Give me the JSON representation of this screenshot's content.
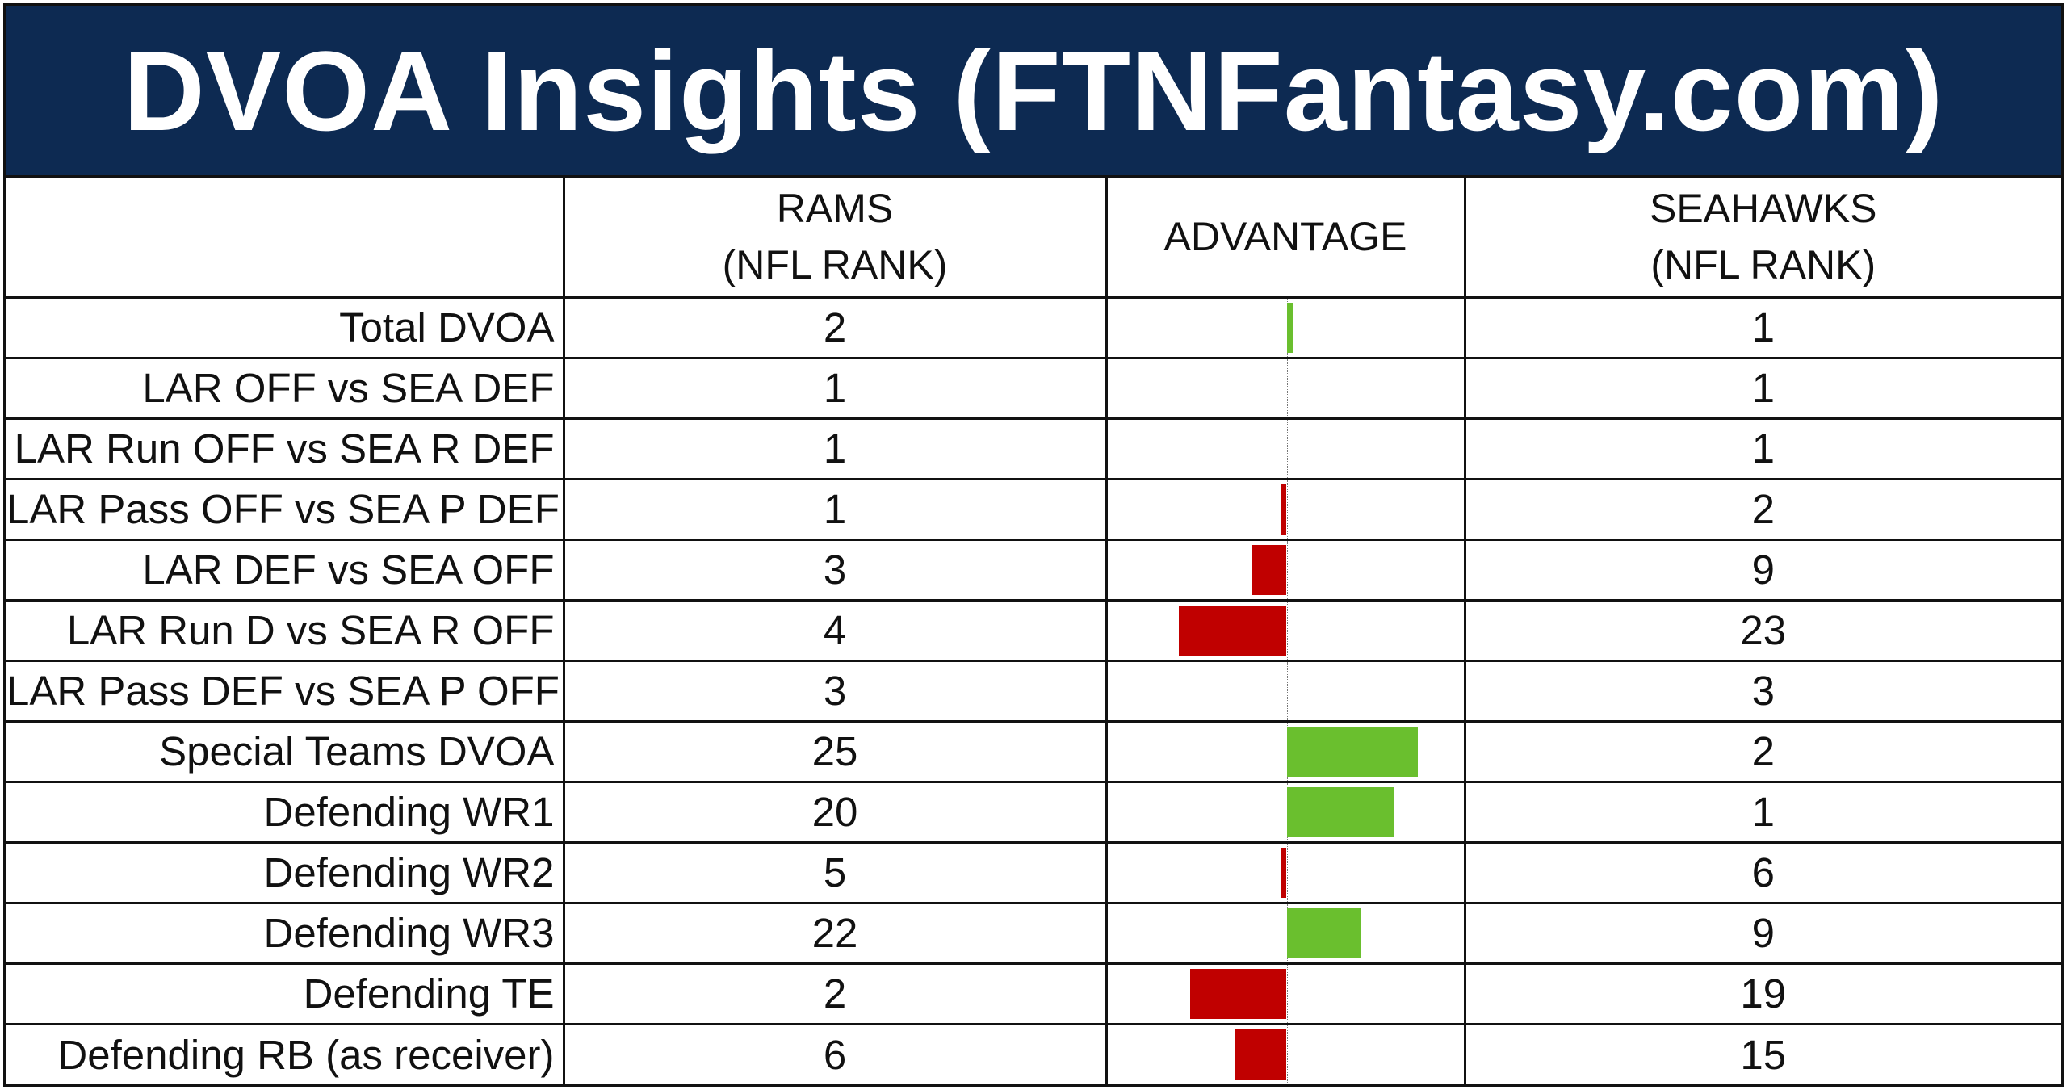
{
  "title": "DVOA Insights (FTNFantasy.com)",
  "colors": {
    "title_bg": "#0d2a52",
    "positive": "#6abf2e",
    "negative": "#c00000"
  },
  "chart_data": {
    "type": "table",
    "columns": [
      "",
      "RAMS (NFL RANK)",
      "ADVANTAGE",
      "SEAHAWKS (NFL RANK)"
    ],
    "headers": {
      "label": "",
      "rams_line1": "RAMS",
      "rams_line2": "(NFL RANK)",
      "advantage": "ADVANTAGE",
      "sea_line1": "SEAHAWKS",
      "sea_line2": "(NFL RANK)"
    },
    "advantage_range": [
      -23,
      23
    ],
    "rows": [
      {
        "label": "Total DVOA",
        "rams": "2",
        "seahawks": "1",
        "advantage": 1
      },
      {
        "label": "LAR OFF vs SEA DEF",
        "rams": "1",
        "seahawks": "1",
        "advantage": 0
      },
      {
        "label": "LAR Run OFF vs SEA R DEF",
        "rams": "1",
        "seahawks": "1",
        "advantage": 0
      },
      {
        "label": "LAR Pass OFF vs SEA P DEF",
        "rams": "1",
        "seahawks": "2",
        "advantage": -1
      },
      {
        "label": "LAR DEF vs SEA OFF",
        "rams": "3",
        "seahawks": "9",
        "advantage": -6
      },
      {
        "label": "LAR Run D vs SEA R OFF",
        "rams": "4",
        "seahawks": "23",
        "advantage": -19
      },
      {
        "label": "LAR Pass DEF vs SEA P OFF",
        "rams": "3",
        "seahawks": "3",
        "advantage": 0
      },
      {
        "label": "Special Teams DVOA",
        "rams": "25",
        "seahawks": "2",
        "advantage": 23
      },
      {
        "label": "Defending WR1",
        "rams": "20",
        "seahawks": "1",
        "advantage": 19
      },
      {
        "label": "Defending WR2",
        "rams": "5",
        "seahawks": "6",
        "advantage": -1
      },
      {
        "label": "Defending WR3",
        "rams": "22",
        "seahawks": "9",
        "advantage": 13
      },
      {
        "label": "Defending TE",
        "rams": "2",
        "seahawks": "19",
        "advantage": -17
      },
      {
        "label": "Defending RB (as receiver)",
        "rams": "6",
        "seahawks": "15",
        "advantage": -9
      }
    ]
  }
}
